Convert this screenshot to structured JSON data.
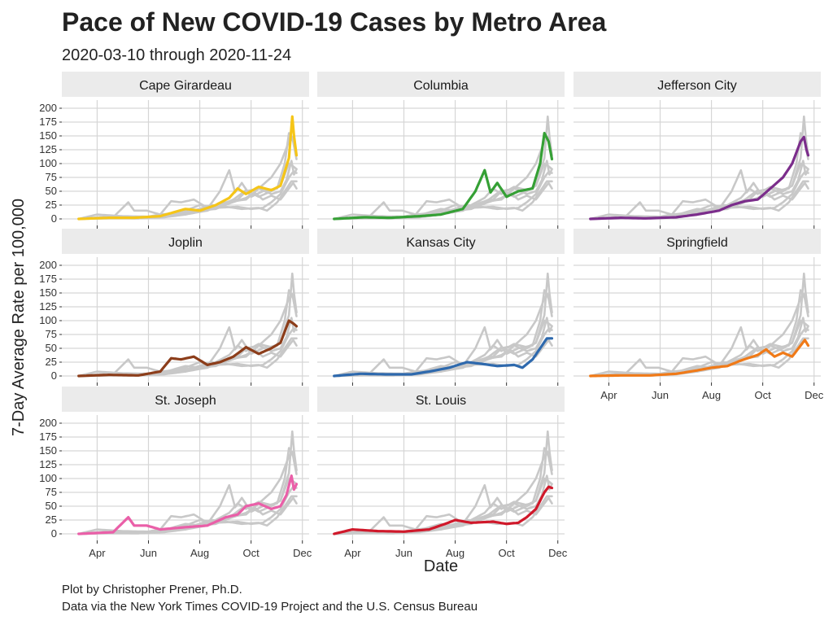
{
  "chart_data": {
    "type": "line",
    "title": "Pace of New COVID-19 Cases by Metro Area",
    "subtitle": "2020-03-10 through 2020-11-24",
    "xlabel": "Date",
    "ylabel": "7-Day Average Rate per 100,000",
    "caption": [
      "Plot by Christopher Prener, Ph.D.",
      "Data via the New York Times COVID-19 Project and the U.S. Census Bureau"
    ],
    "x_tick_labels": [
      "Apr",
      "Jun",
      "Aug",
      "Oct",
      "Dec"
    ],
    "y_ticks": [
      0,
      25,
      50,
      75,
      100,
      125,
      150,
      175,
      200
    ],
    "ylim": [
      0,
      200
    ],
    "xlim": [
      "2020-03-10",
      "2020-11-24"
    ],
    "grid": true,
    "background_series_color": "#c8c8c8",
    "panels": [
      {
        "name": "Cape Girardeau",
        "color": "#f5c518",
        "points": [
          [
            "2020-03-10",
            0
          ],
          [
            "2020-04-15",
            2
          ],
          [
            "2020-05-15",
            2
          ],
          [
            "2020-06-15",
            5
          ],
          [
            "2020-07-15",
            18
          ],
          [
            "2020-08-01",
            15
          ],
          [
            "2020-08-20",
            25
          ],
          [
            "2020-09-05",
            38
          ],
          [
            "2020-09-15",
            55
          ],
          [
            "2020-09-25",
            45
          ],
          [
            "2020-10-10",
            58
          ],
          [
            "2020-10-25",
            52
          ],
          [
            "2020-11-05",
            60
          ],
          [
            "2020-11-15",
            110
          ],
          [
            "2020-11-19",
            185
          ],
          [
            "2020-11-21",
            150
          ],
          [
            "2020-11-24",
            115
          ]
        ]
      },
      {
        "name": "Columbia",
        "color": "#35a035",
        "points": [
          [
            "2020-03-10",
            0
          ],
          [
            "2020-04-15",
            3
          ],
          [
            "2020-05-15",
            2
          ],
          [
            "2020-06-20",
            5
          ],
          [
            "2020-07-15",
            8
          ],
          [
            "2020-08-10",
            18
          ],
          [
            "2020-08-25",
            50
          ],
          [
            "2020-09-05",
            88
          ],
          [
            "2020-09-12",
            48
          ],
          [
            "2020-09-20",
            65
          ],
          [
            "2020-10-01",
            40
          ],
          [
            "2020-10-15",
            50
          ],
          [
            "2020-11-01",
            55
          ],
          [
            "2020-11-10",
            100
          ],
          [
            "2020-11-15",
            155
          ],
          [
            "2020-11-20",
            140
          ],
          [
            "2020-11-24",
            108
          ]
        ]
      },
      {
        "name": "Jefferson City",
        "color": "#7b2d8b",
        "points": [
          [
            "2020-03-10",
            0
          ],
          [
            "2020-04-15",
            2
          ],
          [
            "2020-05-15",
            1
          ],
          [
            "2020-06-20",
            3
          ],
          [
            "2020-07-15",
            8
          ],
          [
            "2020-08-10",
            15
          ],
          [
            "2020-08-25",
            25
          ],
          [
            "2020-09-10",
            32
          ],
          [
            "2020-09-25",
            35
          ],
          [
            "2020-10-10",
            55
          ],
          [
            "2020-10-25",
            75
          ],
          [
            "2020-11-05",
            100
          ],
          [
            "2020-11-15",
            140
          ],
          [
            "2020-11-19",
            148
          ],
          [
            "2020-11-22",
            125
          ],
          [
            "2020-11-24",
            115
          ]
        ]
      },
      {
        "name": "Joplin",
        "color": "#8c3d1a",
        "points": [
          [
            "2020-03-10",
            0
          ],
          [
            "2020-04-15",
            2
          ],
          [
            "2020-05-20",
            1
          ],
          [
            "2020-06-15",
            8
          ],
          [
            "2020-06-28",
            32
          ],
          [
            "2020-07-10",
            30
          ],
          [
            "2020-07-25",
            35
          ],
          [
            "2020-08-10",
            20
          ],
          [
            "2020-08-25",
            25
          ],
          [
            "2020-09-10",
            35
          ],
          [
            "2020-09-25",
            52
          ],
          [
            "2020-10-10",
            40
          ],
          [
            "2020-10-25",
            50
          ],
          [
            "2020-11-05",
            60
          ],
          [
            "2020-11-15",
            100
          ],
          [
            "2020-11-20",
            95
          ],
          [
            "2020-11-24",
            90
          ]
        ]
      },
      {
        "name": "Kansas City",
        "color": "#2e69ad",
        "points": [
          [
            "2020-03-10",
            0
          ],
          [
            "2020-04-10",
            4
          ],
          [
            "2020-05-10",
            3
          ],
          [
            "2020-06-10",
            3
          ],
          [
            "2020-07-01",
            8
          ],
          [
            "2020-07-25",
            15
          ],
          [
            "2020-08-15",
            25
          ],
          [
            "2020-09-01",
            22
          ],
          [
            "2020-09-20",
            18
          ],
          [
            "2020-10-10",
            20
          ],
          [
            "2020-10-20",
            15
          ],
          [
            "2020-11-01",
            30
          ],
          [
            "2020-11-10",
            50
          ],
          [
            "2020-11-18",
            68
          ],
          [
            "2020-11-24",
            68
          ]
        ]
      },
      {
        "name": "Springfield",
        "color": "#f07a18",
        "points": [
          [
            "2020-03-10",
            0
          ],
          [
            "2020-04-15",
            1
          ],
          [
            "2020-05-20",
            1
          ],
          [
            "2020-06-20",
            4
          ],
          [
            "2020-07-15",
            10
          ],
          [
            "2020-08-01",
            15
          ],
          [
            "2020-08-20",
            18
          ],
          [
            "2020-09-05",
            28
          ],
          [
            "2020-09-25",
            38
          ],
          [
            "2020-10-05",
            48
          ],
          [
            "2020-10-15",
            35
          ],
          [
            "2020-10-25",
            42
          ],
          [
            "2020-11-05",
            35
          ],
          [
            "2020-11-15",
            55
          ],
          [
            "2020-11-20",
            65
          ],
          [
            "2020-11-24",
            55
          ]
        ]
      },
      {
        "name": "St. Joseph",
        "color": "#ea5fa8",
        "points": [
          [
            "2020-03-10",
            0
          ],
          [
            "2020-04-20",
            3
          ],
          [
            "2020-05-08",
            30
          ],
          [
            "2020-05-15",
            15
          ],
          [
            "2020-05-30",
            15
          ],
          [
            "2020-06-15",
            8
          ],
          [
            "2020-07-15",
            12
          ],
          [
            "2020-08-10",
            15
          ],
          [
            "2020-09-01",
            30
          ],
          [
            "2020-09-15",
            35
          ],
          [
            "2020-09-25",
            50
          ],
          [
            "2020-10-10",
            55
          ],
          [
            "2020-10-25",
            45
          ],
          [
            "2020-11-05",
            50
          ],
          [
            "2020-11-12",
            70
          ],
          [
            "2020-11-18",
            105
          ],
          [
            "2020-11-21",
            80
          ],
          [
            "2020-11-24",
            90
          ]
        ]
      },
      {
        "name": "St. Louis",
        "color": "#d0182a",
        "points": [
          [
            "2020-03-10",
            0
          ],
          [
            "2020-04-01",
            8
          ],
          [
            "2020-05-01",
            5
          ],
          [
            "2020-06-01",
            4
          ],
          [
            "2020-07-01",
            8
          ],
          [
            "2020-07-20",
            18
          ],
          [
            "2020-08-01",
            25
          ],
          [
            "2020-08-20",
            20
          ],
          [
            "2020-09-15",
            22
          ],
          [
            "2020-10-01",
            18
          ],
          [
            "2020-10-15",
            20
          ],
          [
            "2020-10-25",
            30
          ],
          [
            "2020-11-05",
            45
          ],
          [
            "2020-11-15",
            75
          ],
          [
            "2020-11-20",
            85
          ],
          [
            "2020-11-24",
            83
          ]
        ]
      }
    ]
  }
}
